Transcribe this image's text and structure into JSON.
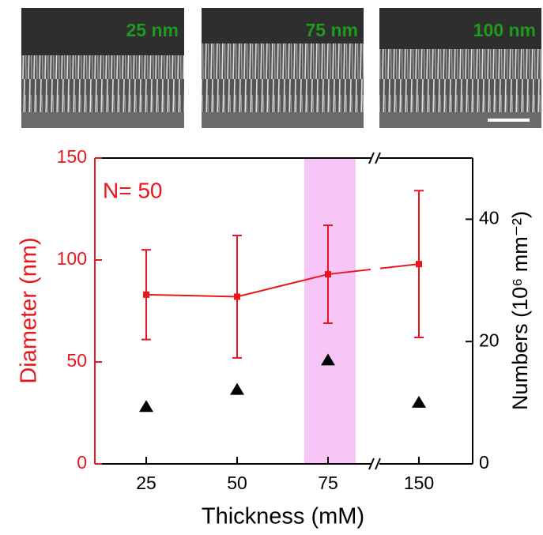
{
  "image_labels": [
    "25 nm",
    "75 nm",
    "100 nm"
  ],
  "chart_data": {
    "type": "line",
    "categories": [
      "25",
      "50",
      "75",
      "150"
    ],
    "series": [
      {
        "color": "#e8171d",
        "axis": "y",
        "values": [
          83,
          82,
          93,
          98
        ],
        "errors": [
          22,
          30,
          24,
          36
        ]
      },
      {
        "color": "#000000",
        "axis": "y2",
        "marker": "triangle",
        "values": [
          9.4,
          12.2,
          17.0,
          10.1
        ]
      }
    ],
    "annotation": "N= 50",
    "xlabel": "Thickness (mM)",
    "ylabel": "Diameter (nm)",
    "y2label": "Numbers (10⁶ mm⁻²)",
    "ylim": [
      0,
      150
    ],
    "yticks": [
      0,
      50,
      100,
      150
    ],
    "y2lim": [
      0,
      50
    ],
    "y2ticks": [
      0,
      20,
      40
    ]
  }
}
